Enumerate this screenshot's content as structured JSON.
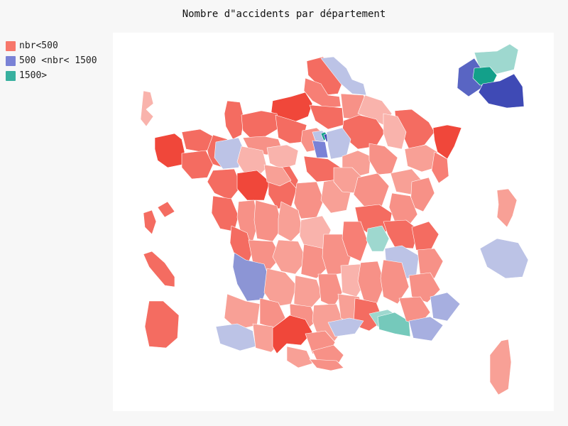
{
  "title": "Nombre d\"accidents par département",
  "legend": [
    {
      "label": "nbr<500",
      "color": "#f7776b"
    },
    {
      "label": "500 <nbr< 1500",
      "color": "#7a82d6"
    },
    {
      "label": "1500>",
      "color": "#38b09f"
    }
  ],
  "palette": {
    "red": [
      "#fbd0cc",
      "#f9b3ac",
      "#f8a096",
      "#f79187",
      "#f77f75",
      "#f46c61",
      "#f05a4c",
      "#f0473a"
    ],
    "blue": [
      "#bcc3e6",
      "#a7afe0",
      "#8c95d5",
      "#6f78cb",
      "#5965c3",
      "#3f4ab5"
    ],
    "teal": [
      "#9ed8cf",
      "#75c9bb",
      "#46b3a1",
      "#13a08a"
    ]
  }
}
